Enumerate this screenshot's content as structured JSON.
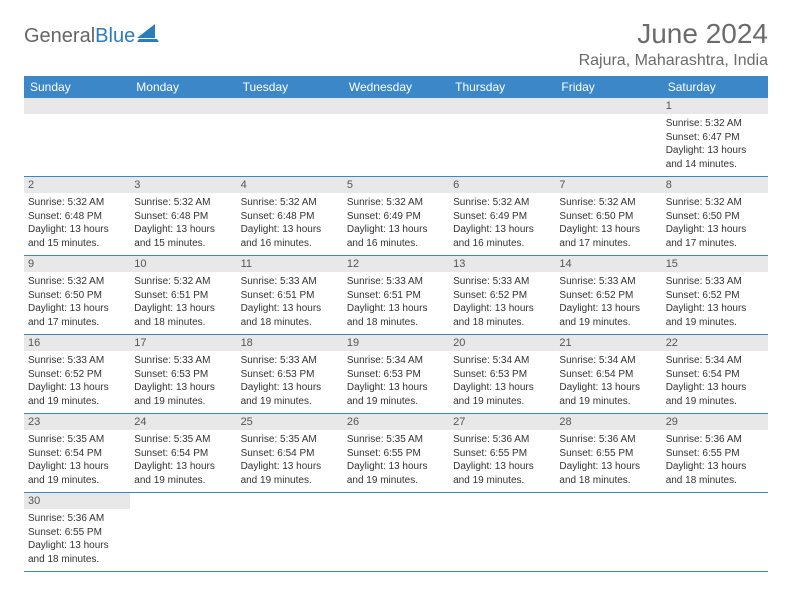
{
  "logo": {
    "general": "General",
    "blue": "Blue"
  },
  "title": "June 2024",
  "location": "Rajura, Maharashtra, India",
  "colors": {
    "header_bg": "#3b87c8",
    "header_text": "#ffffff",
    "daynum_bg": "#e8e8e8",
    "border": "#3b87c8",
    "title_color": "#6b6b6b"
  },
  "weekdays": [
    "Sunday",
    "Monday",
    "Tuesday",
    "Wednesday",
    "Thursday",
    "Friday",
    "Saturday"
  ],
  "weeks": [
    [
      null,
      null,
      null,
      null,
      null,
      null,
      {
        "n": "1",
        "sr": "Sunrise: 5:32 AM",
        "ss": "Sunset: 6:47 PM",
        "dl": "Daylight: 13 hours and 14 minutes."
      }
    ],
    [
      {
        "n": "2",
        "sr": "Sunrise: 5:32 AM",
        "ss": "Sunset: 6:48 PM",
        "dl": "Daylight: 13 hours and 15 minutes."
      },
      {
        "n": "3",
        "sr": "Sunrise: 5:32 AM",
        "ss": "Sunset: 6:48 PM",
        "dl": "Daylight: 13 hours and 15 minutes."
      },
      {
        "n": "4",
        "sr": "Sunrise: 5:32 AM",
        "ss": "Sunset: 6:48 PM",
        "dl": "Daylight: 13 hours and 16 minutes."
      },
      {
        "n": "5",
        "sr": "Sunrise: 5:32 AM",
        "ss": "Sunset: 6:49 PM",
        "dl": "Daylight: 13 hours and 16 minutes."
      },
      {
        "n": "6",
        "sr": "Sunrise: 5:32 AM",
        "ss": "Sunset: 6:49 PM",
        "dl": "Daylight: 13 hours and 16 minutes."
      },
      {
        "n": "7",
        "sr": "Sunrise: 5:32 AM",
        "ss": "Sunset: 6:50 PM",
        "dl": "Daylight: 13 hours and 17 minutes."
      },
      {
        "n": "8",
        "sr": "Sunrise: 5:32 AM",
        "ss": "Sunset: 6:50 PM",
        "dl": "Daylight: 13 hours and 17 minutes."
      }
    ],
    [
      {
        "n": "9",
        "sr": "Sunrise: 5:32 AM",
        "ss": "Sunset: 6:50 PM",
        "dl": "Daylight: 13 hours and 17 minutes."
      },
      {
        "n": "10",
        "sr": "Sunrise: 5:32 AM",
        "ss": "Sunset: 6:51 PM",
        "dl": "Daylight: 13 hours and 18 minutes."
      },
      {
        "n": "11",
        "sr": "Sunrise: 5:33 AM",
        "ss": "Sunset: 6:51 PM",
        "dl": "Daylight: 13 hours and 18 minutes."
      },
      {
        "n": "12",
        "sr": "Sunrise: 5:33 AM",
        "ss": "Sunset: 6:51 PM",
        "dl": "Daylight: 13 hours and 18 minutes."
      },
      {
        "n": "13",
        "sr": "Sunrise: 5:33 AM",
        "ss": "Sunset: 6:52 PM",
        "dl": "Daylight: 13 hours and 18 minutes."
      },
      {
        "n": "14",
        "sr": "Sunrise: 5:33 AM",
        "ss": "Sunset: 6:52 PM",
        "dl": "Daylight: 13 hours and 19 minutes."
      },
      {
        "n": "15",
        "sr": "Sunrise: 5:33 AM",
        "ss": "Sunset: 6:52 PM",
        "dl": "Daylight: 13 hours and 19 minutes."
      }
    ],
    [
      {
        "n": "16",
        "sr": "Sunrise: 5:33 AM",
        "ss": "Sunset: 6:52 PM",
        "dl": "Daylight: 13 hours and 19 minutes."
      },
      {
        "n": "17",
        "sr": "Sunrise: 5:33 AM",
        "ss": "Sunset: 6:53 PM",
        "dl": "Daylight: 13 hours and 19 minutes."
      },
      {
        "n": "18",
        "sr": "Sunrise: 5:33 AM",
        "ss": "Sunset: 6:53 PM",
        "dl": "Daylight: 13 hours and 19 minutes."
      },
      {
        "n": "19",
        "sr": "Sunrise: 5:34 AM",
        "ss": "Sunset: 6:53 PM",
        "dl": "Daylight: 13 hours and 19 minutes."
      },
      {
        "n": "20",
        "sr": "Sunrise: 5:34 AM",
        "ss": "Sunset: 6:53 PM",
        "dl": "Daylight: 13 hours and 19 minutes."
      },
      {
        "n": "21",
        "sr": "Sunrise: 5:34 AM",
        "ss": "Sunset: 6:54 PM",
        "dl": "Daylight: 13 hours and 19 minutes."
      },
      {
        "n": "22",
        "sr": "Sunrise: 5:34 AM",
        "ss": "Sunset: 6:54 PM",
        "dl": "Daylight: 13 hours and 19 minutes."
      }
    ],
    [
      {
        "n": "23",
        "sr": "Sunrise: 5:35 AM",
        "ss": "Sunset: 6:54 PM",
        "dl": "Daylight: 13 hours and 19 minutes."
      },
      {
        "n": "24",
        "sr": "Sunrise: 5:35 AM",
        "ss": "Sunset: 6:54 PM",
        "dl": "Daylight: 13 hours and 19 minutes."
      },
      {
        "n": "25",
        "sr": "Sunrise: 5:35 AM",
        "ss": "Sunset: 6:54 PM",
        "dl": "Daylight: 13 hours and 19 minutes."
      },
      {
        "n": "26",
        "sr": "Sunrise: 5:35 AM",
        "ss": "Sunset: 6:55 PM",
        "dl": "Daylight: 13 hours and 19 minutes."
      },
      {
        "n": "27",
        "sr": "Sunrise: 5:36 AM",
        "ss": "Sunset: 6:55 PM",
        "dl": "Daylight: 13 hours and 19 minutes."
      },
      {
        "n": "28",
        "sr": "Sunrise: 5:36 AM",
        "ss": "Sunset: 6:55 PM",
        "dl": "Daylight: 13 hours and 18 minutes."
      },
      {
        "n": "29",
        "sr": "Sunrise: 5:36 AM",
        "ss": "Sunset: 6:55 PM",
        "dl": "Daylight: 13 hours and 18 minutes."
      }
    ],
    [
      {
        "n": "30",
        "sr": "Sunrise: 5:36 AM",
        "ss": "Sunset: 6:55 PM",
        "dl": "Daylight: 13 hours and 18 minutes."
      },
      null,
      null,
      null,
      null,
      null,
      null
    ]
  ]
}
